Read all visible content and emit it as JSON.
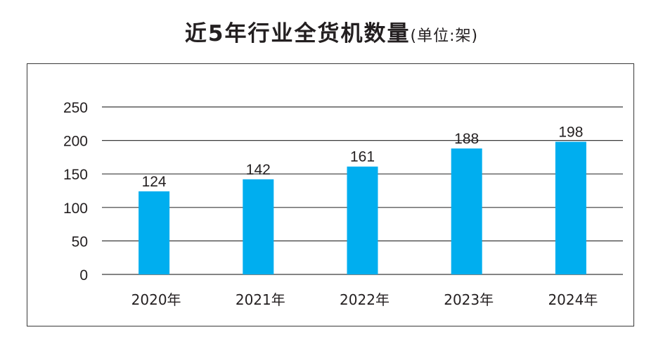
{
  "chart_data": {
    "type": "bar",
    "title": "近5年行业全货机数量",
    "unit_note": "(单位:架)",
    "categories": [
      "2020年",
      "2021年",
      "2022年",
      "2023年",
      "2024年"
    ],
    "values": [
      124,
      142,
      161,
      188,
      198
    ],
    "data_labels": [
      "124",
      "142",
      "161",
      "188",
      "198"
    ],
    "yticks": [
      "0",
      "50",
      "100",
      "150",
      "200",
      "250"
    ],
    "ylim": [
      0,
      250
    ],
    "xlabel": "",
    "ylabel": "",
    "grid": true,
    "legend": "none",
    "bar_color": "#00aeef",
    "grid_color": "#3a3a3a"
  }
}
